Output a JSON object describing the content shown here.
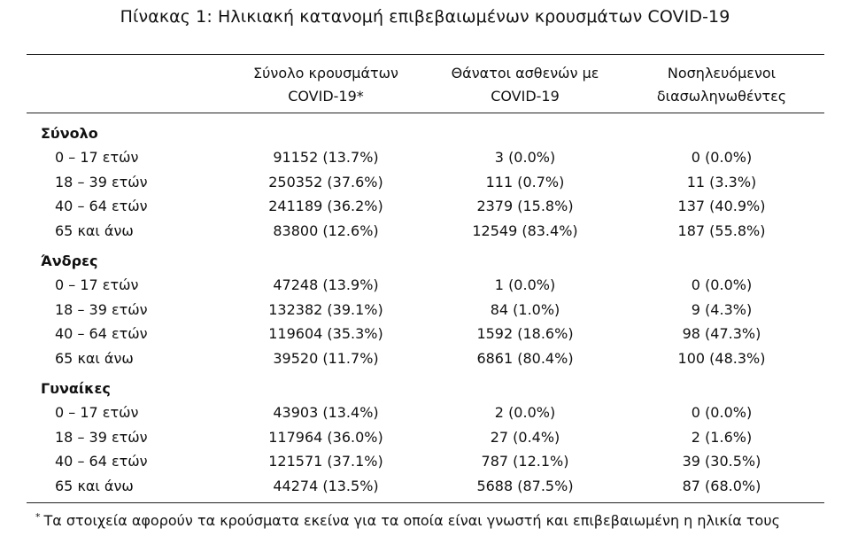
{
  "caption": "Πίνακας 1: Ηλικιακή κατανομή επιβεβαιωμένων κρουσμάτων COVID-19",
  "columns": [
    {
      "line1": "Σύνολο κρουσμάτων",
      "line2": "COVID-19*"
    },
    {
      "line1": "Θάνατοι ασθενών με",
      "line2": "COVID-19"
    },
    {
      "line1": "Νοσηλευόμενοι",
      "line2": "διασωληνωθέντες"
    }
  ],
  "groups": [
    {
      "title": "Σύνολο",
      "rows": [
        {
          "age": "0 – 17 ετών",
          "cases": "91152 (13.7%)",
          "deaths": "3 (0.0%)",
          "intubated": "0 (0.0%)"
        },
        {
          "age": "18 – 39 ετών",
          "cases": "250352 (37.6%)",
          "deaths": "111 (0.7%)",
          "intubated": "11 (3.3%)"
        },
        {
          "age": "40 – 64 ετών",
          "cases": "241189 (36.2%)",
          "deaths": "2379 (15.8%)",
          "intubated": "137 (40.9%)"
        },
        {
          "age": "65 και άνω",
          "cases": "83800 (12.6%)",
          "deaths": "12549 (83.4%)",
          "intubated": "187 (55.8%)"
        }
      ]
    },
    {
      "title": "Άνδρες",
      "rows": [
        {
          "age": "0 – 17 ετών",
          "cases": "47248 (13.9%)",
          "deaths": "1 (0.0%)",
          "intubated": "0 (0.0%)"
        },
        {
          "age": "18 – 39 ετών",
          "cases": "132382 (39.1%)",
          "deaths": "84 (1.0%)",
          "intubated": "9 (4.3%)"
        },
        {
          "age": "40 – 64 ετών",
          "cases": "119604 (35.3%)",
          "deaths": "1592 (18.6%)",
          "intubated": "98 (47.3%)"
        },
        {
          "age": "65 και άνω",
          "cases": "39520 (11.7%)",
          "deaths": "6861 (80.4%)",
          "intubated": "100 (48.3%)"
        }
      ]
    },
    {
      "title": "Γυναίκες",
      "rows": [
        {
          "age": "0 – 17 ετών",
          "cases": "43903 (13.4%)",
          "deaths": "2 (0.0%)",
          "intubated": "0 (0.0%)"
        },
        {
          "age": "18 – 39 ετών",
          "cases": "117964 (36.0%)",
          "deaths": "27 (0.4%)",
          "intubated": "2 (1.6%)"
        },
        {
          "age": "40 – 64 ετών",
          "cases": "121571 (37.1%)",
          "deaths": "787 (12.1%)",
          "intubated": "39 (30.5%)"
        },
        {
          "age": "65 και άνω",
          "cases": "44274 (13.5%)",
          "deaths": "5688 (87.5%)",
          "intubated": "87 (68.0%)"
        }
      ]
    }
  ],
  "footnote": {
    "marker": "*",
    "text": "Τα στοιχεία αφορούν τα κρούσματα εκείνα για τα οποία είναι γνωστή και επιβεβαιωμένη η ηλικία τους"
  }
}
